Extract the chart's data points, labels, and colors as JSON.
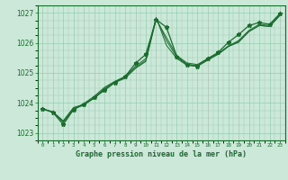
{
  "background_color": "#cce8d8",
  "grid_color": "#99ccb3",
  "line_color": "#1a6b2e",
  "title": "Graphe pression niveau de la mer (hPa)",
  "xlim": [
    -0.5,
    23.5
  ],
  "ylim": [
    1022.75,
    1027.25
  ],
  "yticks": [
    1023,
    1024,
    1025,
    1026,
    1027
  ],
  "xticks": [
    0,
    1,
    2,
    3,
    4,
    5,
    6,
    7,
    8,
    9,
    10,
    11,
    12,
    13,
    14,
    15,
    16,
    17,
    18,
    19,
    20,
    21,
    22,
    23
  ],
  "series1_x": [
    0,
    1,
    2,
    3,
    4,
    5,
    6,
    7,
    8,
    9,
    10,
    11,
    12,
    13,
    14,
    15,
    16,
    17,
    18,
    19,
    20,
    21,
    22,
    23
  ],
  "series1_y": [
    1023.8,
    1023.7,
    1023.4,
    1023.85,
    1023.95,
    1024.15,
    1024.45,
    1024.68,
    1024.82,
    1025.15,
    1025.38,
    1026.78,
    1026.18,
    1025.58,
    1025.33,
    1025.28,
    1025.48,
    1025.62,
    1025.88,
    1026.02,
    1026.38,
    1026.58,
    1026.55,
    1026.92
  ],
  "series2_x": [
    0,
    1,
    2,
    3,
    4,
    5,
    6,
    7,
    8,
    9,
    10,
    11,
    12,
    13,
    14,
    15,
    16,
    17,
    18,
    19,
    20,
    21,
    22,
    23
  ],
  "series2_y": [
    1023.8,
    1023.7,
    1023.38,
    1023.82,
    1023.92,
    1024.18,
    1024.48,
    1024.7,
    1024.85,
    1025.18,
    1025.42,
    1026.82,
    1026.08,
    1025.52,
    1025.28,
    1025.25,
    1025.45,
    1025.65,
    1025.9,
    1026.08,
    1026.42,
    1026.62,
    1026.58,
    1026.95
  ],
  "series3_x": [
    0,
    1,
    2,
    3,
    4,
    5,
    6,
    7,
    8,
    9,
    10,
    11,
    12,
    13,
    14,
    15,
    16,
    17,
    18,
    19,
    20,
    21,
    22,
    23
  ],
  "series3_y": [
    1023.8,
    1023.7,
    1023.35,
    1023.78,
    1023.98,
    1024.22,
    1024.52,
    1024.72,
    1024.88,
    1025.22,
    1025.48,
    1026.85,
    1025.92,
    1025.48,
    1025.25,
    1025.22,
    1025.42,
    1025.62,
    1025.88,
    1026.05,
    1026.38,
    1026.58,
    1026.55,
    1026.92
  ],
  "main_x": [
    0,
    1,
    2,
    3,
    4,
    5,
    6,
    7,
    8,
    9,
    10,
    11,
    12,
    13,
    14,
    15,
    16,
    17,
    18,
    19,
    20,
    21,
    22,
    23
  ],
  "main_y": [
    1023.8,
    1023.68,
    1023.28,
    1023.78,
    1023.95,
    1024.18,
    1024.42,
    1024.68,
    1024.88,
    1025.32,
    1025.62,
    1026.78,
    1026.52,
    1025.55,
    1025.28,
    1025.22,
    1025.48,
    1025.68,
    1026.02,
    1026.28,
    1026.58,
    1026.68,
    1026.62,
    1026.98
  ]
}
